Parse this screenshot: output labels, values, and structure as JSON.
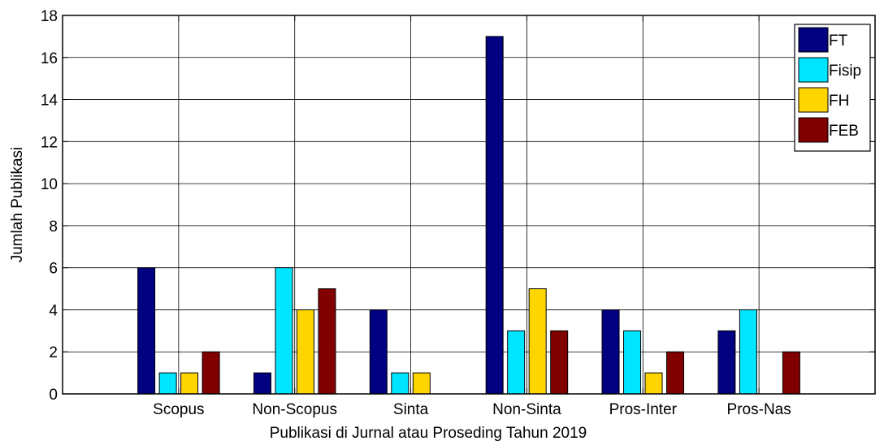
{
  "chart_data": {
    "type": "bar",
    "title": "",
    "xlabel": "Publikasi di Jurnal atau Proseding Tahun 2019",
    "ylabel": "Jumlah Publikasi",
    "categories": [
      "Scopus",
      "Non-Scopus",
      "Sinta",
      "Non-Sinta",
      "Pros-Inter",
      "Pros-Nas"
    ],
    "series": [
      {
        "name": "FT",
        "color": "#000080",
        "values": [
          6,
          1,
          4,
          17,
          4,
          3
        ]
      },
      {
        "name": "Fisip",
        "color": "#00E5FF",
        "values": [
          1,
          6,
          1,
          3,
          3,
          4
        ]
      },
      {
        "name": "FH",
        "color": "#FFD500",
        "values": [
          1,
          4,
          1,
          5,
          1,
          0
        ]
      },
      {
        "name": "FEB",
        "color": "#800000",
        "values": [
          2,
          5,
          0,
          3,
          2,
          2
        ]
      }
    ],
    "ylim": [
      0,
      18
    ],
    "yticks": [
      0,
      2,
      4,
      6,
      8,
      10,
      12,
      14,
      16,
      18
    ],
    "grid": true,
    "legend_position": "top-right"
  }
}
